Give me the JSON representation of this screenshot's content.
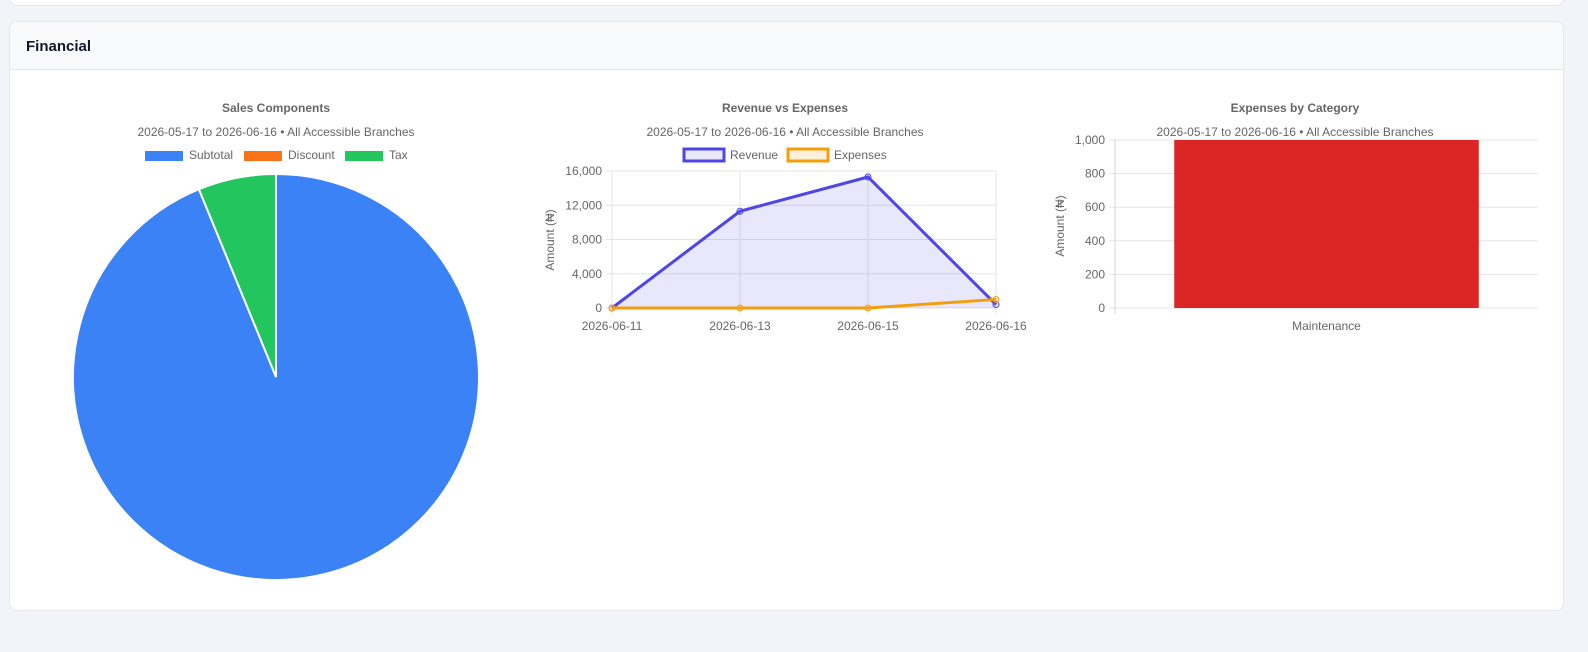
{
  "card": {
    "title": "Financial"
  },
  "colors": {
    "subtotal": "#3b82f6",
    "discount": "#f97316",
    "tax": "#22c55e",
    "revenue": "#4f46e5",
    "expenses": "#f59e0b",
    "bar": "#dc2626"
  },
  "chart_data": [
    {
      "type": "pie",
      "title": "Sales Components",
      "subtitle": "2026-05-17 to 2026-06-16 • All Accessible Branches",
      "legend": "top",
      "labels": [
        "Subtotal",
        "Discount",
        "Tax"
      ],
      "values": [
        93.8,
        0,
        6.2
      ]
    },
    {
      "type": "line",
      "title": "Revenue vs Expenses",
      "subtitle": "2026-05-17 to 2026-06-16 • All Accessible Branches",
      "legend": "top",
      "categories": [
        "2026-06-11",
        "2026-06-13",
        "2026-06-15",
        "2026-06-16"
      ],
      "series": [
        {
          "name": "Revenue",
          "values": [
            0,
            11300,
            15300,
            400
          ],
          "fill": true
        },
        {
          "name": "Expenses",
          "values": [
            0,
            0,
            0,
            1000
          ],
          "fill": false
        }
      ],
      "ylabel": "Amount (₦)",
      "ylim": [
        0,
        16000
      ],
      "yticks": [
        "16,000",
        "12,000",
        "8,000",
        "4,000",
        "0"
      ],
      "grid": true
    },
    {
      "type": "bar",
      "title": "Expenses by Category",
      "subtitle": "2026-05-17 to 2026-06-16 • All Accessible Branches",
      "categories": [
        "Maintenance"
      ],
      "values": [
        1000
      ],
      "ylabel": "Amount (₦)",
      "ylim": [
        0,
        1000
      ],
      "yticks": [
        "1,000",
        "800",
        "600",
        "400",
        "200",
        "0"
      ],
      "grid": true
    }
  ]
}
